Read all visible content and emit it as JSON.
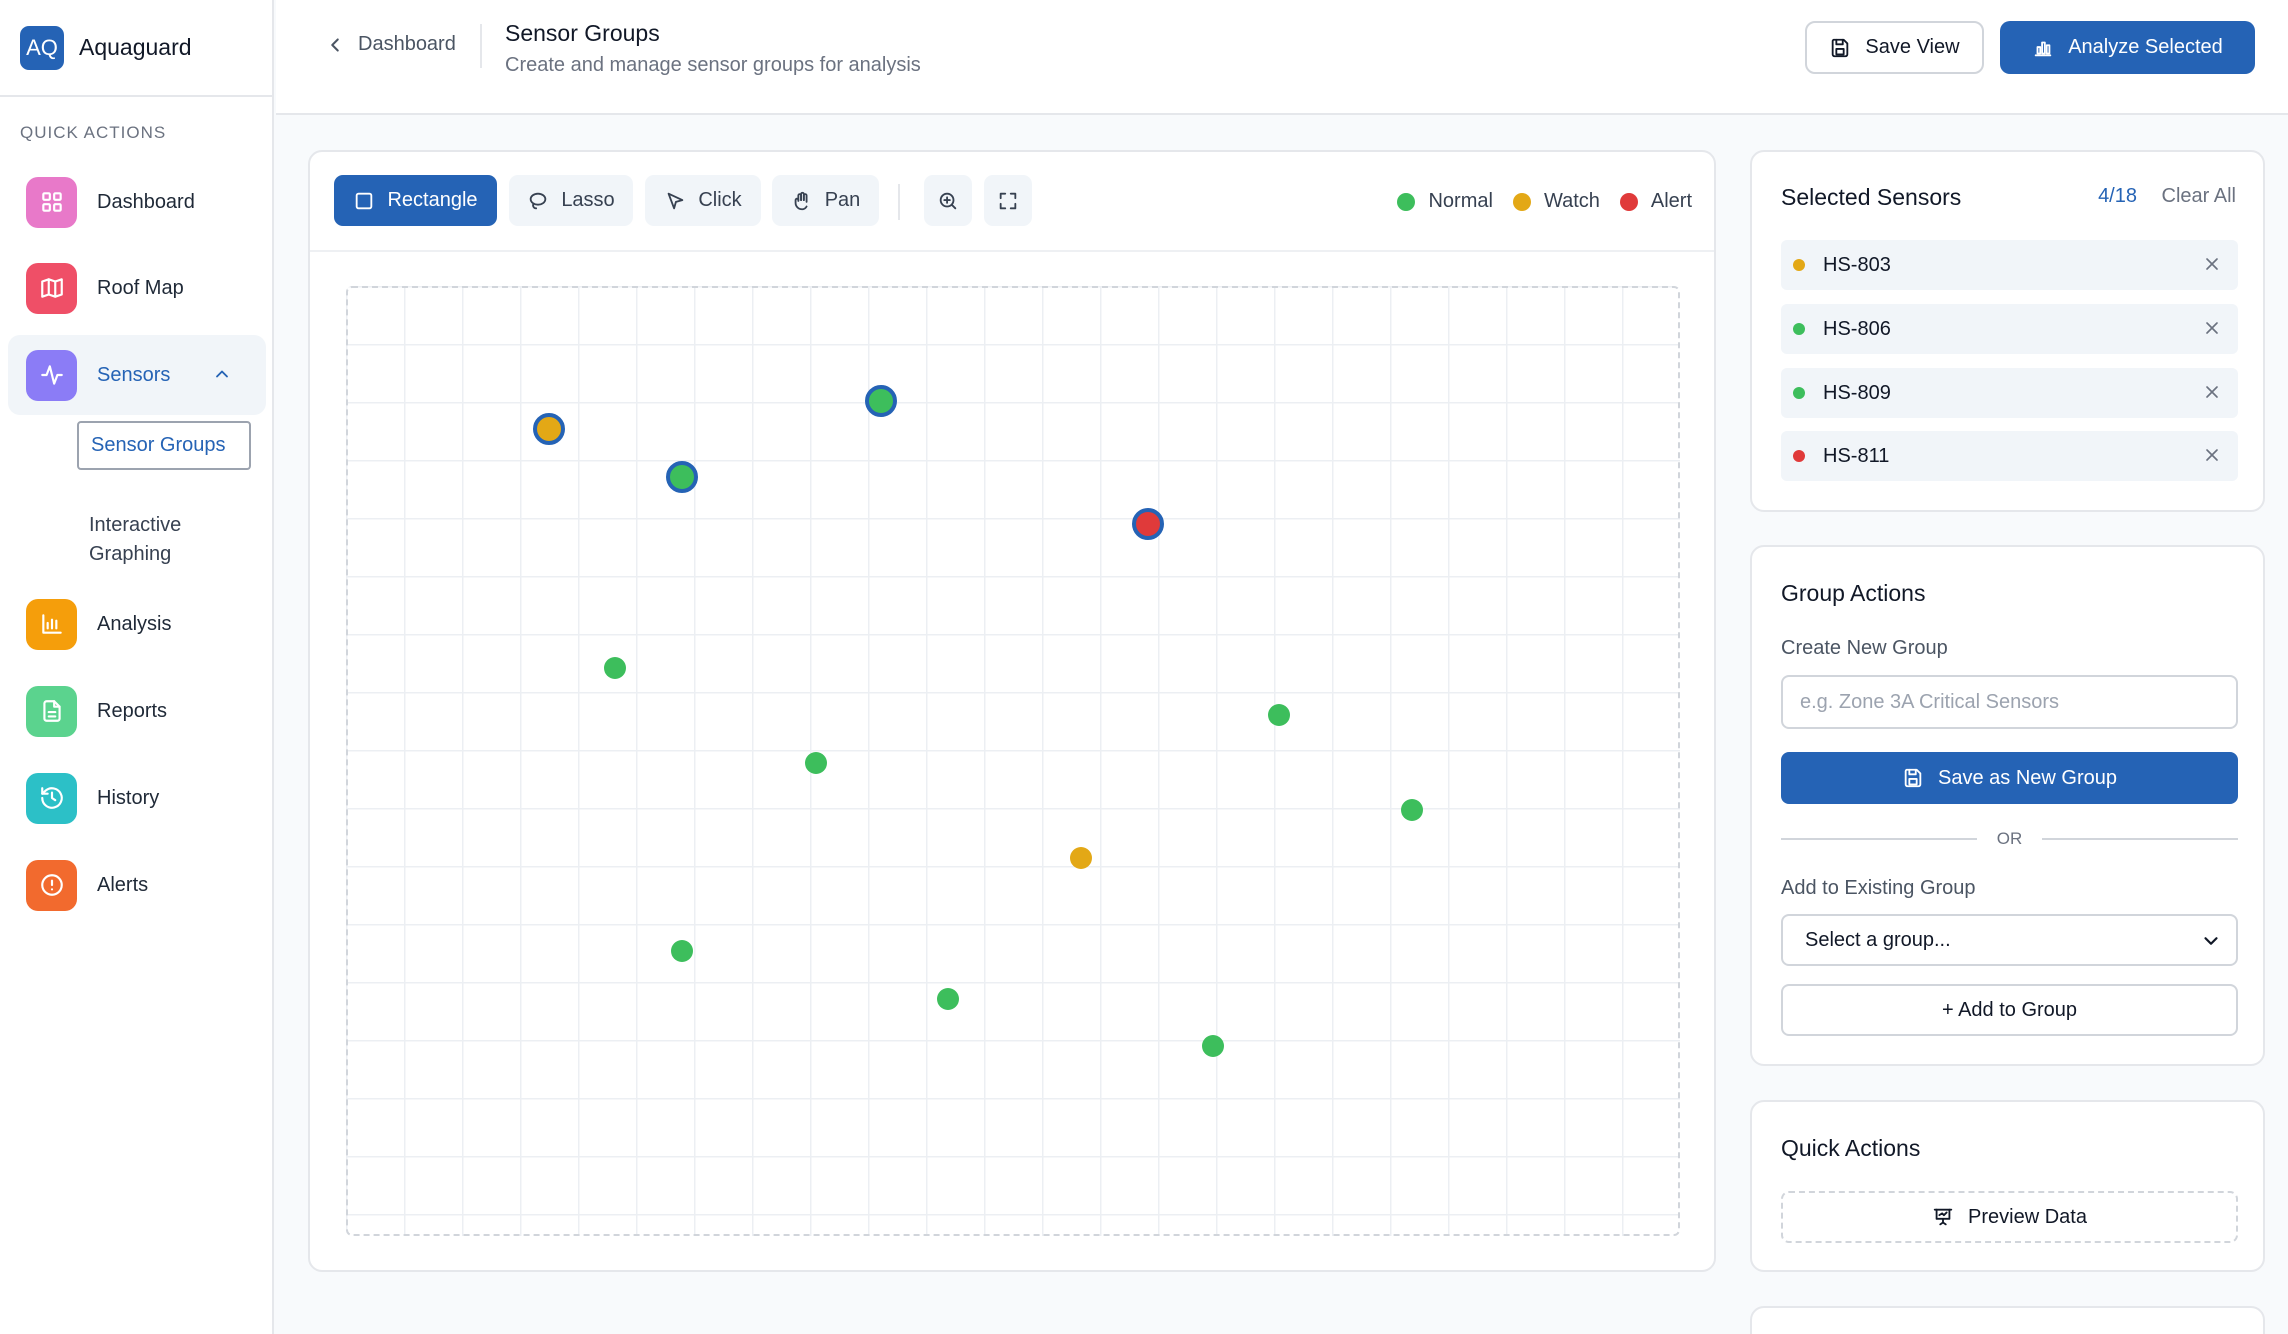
{
  "app": {
    "logo_text": "AQ",
    "name": "Aquaguard"
  },
  "sidebar": {
    "section_title": "QUICK ACTIONS",
    "items": [
      {
        "label": "Dashboard",
        "icon": "grid-icon",
        "color": "#e879c9"
      },
      {
        "label": "Roof Map",
        "icon": "map-icon",
        "color": "#ef4f67"
      },
      {
        "label": "Sensors",
        "icon": "activity-icon",
        "color": "#8b7cf6",
        "expanded": true
      },
      {
        "label": "Analysis",
        "icon": "bar-chart-icon",
        "color": "#f59e0b"
      },
      {
        "label": "Reports",
        "icon": "file-text-icon",
        "color": "#5bd38e"
      },
      {
        "label": "History",
        "icon": "history-icon",
        "color": "#2cc0c7"
      },
      {
        "label": "Alerts",
        "icon": "alert-circle-icon",
        "color": "#f26a2e"
      }
    ],
    "sub_items": [
      {
        "label": "Sensor Groups",
        "active": true
      },
      {
        "label": "Interactive Graphing",
        "active": false
      }
    ]
  },
  "header": {
    "back_label": "Dashboard",
    "title": "Sensor Groups",
    "subtitle": "Create and manage sensor groups for analysis",
    "save_view_label": "Save View",
    "analyze_label": "Analyze Selected"
  },
  "toolbar": {
    "tools": [
      {
        "label": "Rectangle",
        "icon": "square-icon",
        "active": true
      },
      {
        "label": "Lasso",
        "icon": "lasso-icon",
        "active": false
      },
      {
        "label": "Click",
        "icon": "pointer-icon",
        "active": false
      },
      {
        "label": "Pan",
        "icon": "hand-icon",
        "active": false
      }
    ],
    "zoom_icon": "zoom-in-icon",
    "fit_icon": "maximize-icon"
  },
  "legend": [
    {
      "label": "Normal",
      "color": "#3dbe5c"
    },
    {
      "label": "Watch",
      "color": "#e3a816"
    },
    {
      "label": "Alert",
      "color": "#e03a3a"
    }
  ],
  "colors": {
    "accent": "#2563b5",
    "selected_ring": "#2563b5"
  },
  "sensor_map": [
    {
      "status": "Watch",
      "selected": true
    },
    {
      "status": "Normal",
      "selected": true
    },
    {
      "status": "Normal",
      "selected": true
    },
    {
      "status": "Alert",
      "selected": true
    },
    {
      "status": "Normal",
      "selected": false
    },
    {
      "status": "Normal",
      "selected": false
    },
    {
      "status": "Normal",
      "selected": false
    },
    {
      "status": "Normal",
      "selected": false
    },
    {
      "status": "Watch",
      "selected": false
    },
    {
      "status": "Normal",
      "selected": false
    },
    {
      "status": "Normal",
      "selected": false
    },
    {
      "status": "Normal",
      "selected": false
    }
  ],
  "selected": {
    "title": "Selected Sensors",
    "count": "4/18",
    "clear_label": "Clear All",
    "sensors": [
      {
        "id": "HS-803",
        "color": "#e3a816"
      },
      {
        "id": "HS-806",
        "color": "#3dbe5c"
      },
      {
        "id": "HS-809",
        "color": "#3dbe5c"
      },
      {
        "id": "HS-811",
        "color": "#e03a3a"
      }
    ]
  },
  "group_actions": {
    "title": "Group Actions",
    "create_label": "Create New Group",
    "name_placeholder": "e.g. Zone 3A Critical Sensors",
    "name_value": "",
    "save_group_label": "Save as New Group",
    "or_label": "OR",
    "existing_label": "Add to Existing Group",
    "select_value": "Select a group...",
    "add_label": "+ Add to Group"
  },
  "quick_actions": {
    "title": "Quick Actions",
    "preview_label": "Preview Data"
  }
}
